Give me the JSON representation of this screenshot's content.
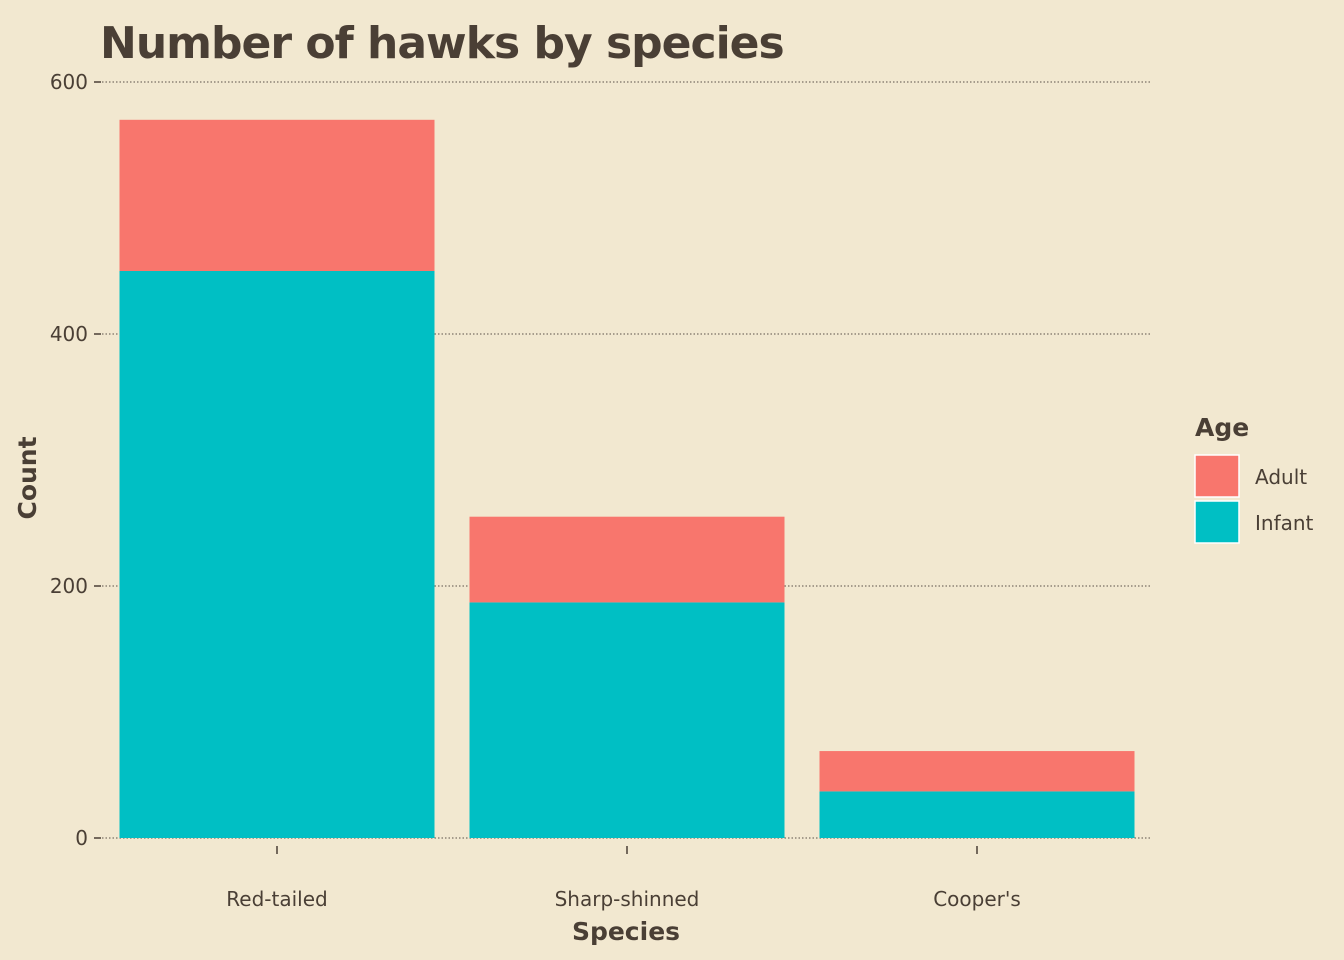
{
  "chart_data": {
    "type": "bar",
    "stacked": true,
    "title": "Number of hawks by species",
    "xlabel": "Species",
    "ylabel": "Count",
    "categories": [
      "Red-tailed",
      "Sharp-shinned",
      "Cooper's"
    ],
    "series": [
      {
        "name": "Infant",
        "color": "#00bfc4",
        "values": [
          450,
          187,
          37
        ]
      },
      {
        "name": "Adult",
        "color": "#f8766d",
        "values": [
          120,
          68,
          32
        ]
      }
    ],
    "ylim": [
      0,
      600
    ],
    "yticks": [
      0,
      200,
      400,
      600
    ],
    "grid": "horizontal dotted",
    "legend": {
      "title": "Age",
      "position": "right",
      "items": [
        {
          "label": "Adult",
          "color": "#f8766d"
        },
        {
          "label": "Infant",
          "color": "#00bfc4"
        }
      ]
    }
  }
}
